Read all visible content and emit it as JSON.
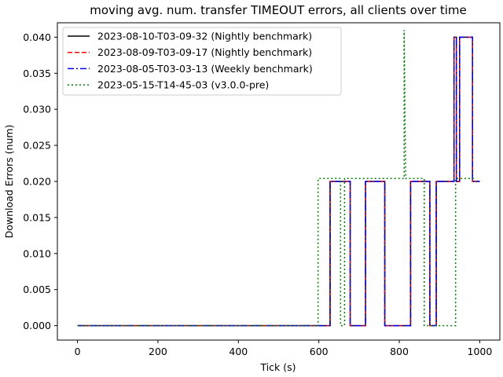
{
  "chart_data": {
    "type": "line",
    "title": "moving avg. num. transfer TIMEOUT errors, all clients over time",
    "xlabel": "Tick (s)",
    "ylabel": "Download Errors (num)",
    "xlim": [
      -50,
      1050
    ],
    "ylim": [
      -0.002,
      0.042
    ],
    "xticks": [
      0,
      200,
      400,
      600,
      800,
      1000
    ],
    "xtick_labels": [
      "0",
      "200",
      "400",
      "600",
      "800",
      "1000"
    ],
    "yticks": [
      0.0,
      0.005,
      0.01,
      0.015,
      0.02,
      0.025,
      0.03,
      0.035,
      0.04
    ],
    "ytick_labels": [
      "0.000",
      "0.005",
      "0.010",
      "0.015",
      "0.020",
      "0.025",
      "0.030",
      "0.035",
      "0.040"
    ],
    "grid": false,
    "legend_position": "top-left",
    "series": [
      {
        "name": "2023-08-10-T03-09-32 (Nightly benchmark)",
        "color": "#000000",
        "style": "solid",
        "x": [
          0,
          628,
          628,
          678,
          678,
          716,
          716,
          764,
          764,
          828,
          828,
          876,
          876,
          892,
          892,
          936,
          936,
          942,
          942,
          950,
          950,
          982,
          982,
          1000
        ],
        "y": [
          0,
          0,
          0.02,
          0.02,
          0,
          0,
          0.02,
          0.02,
          0,
          0,
          0.02,
          0.02,
          0,
          0,
          0.02,
          0.02,
          0.04,
          0.04,
          0.02,
          0.02,
          0.04,
          0.04,
          0.02,
          0.02
        ]
      },
      {
        "name": "2023-08-09-T03-09-17 (Nightly benchmark)",
        "color": "#ff0000",
        "style": "dashed",
        "x": [
          0,
          628,
          628,
          678,
          678,
          716,
          716,
          764,
          764,
          828,
          828,
          876,
          876,
          892,
          892,
          936,
          936,
          942,
          942,
          950,
          950,
          982,
          982,
          1000
        ],
        "y": [
          0,
          0,
          0.02,
          0.02,
          0,
          0,
          0.02,
          0.02,
          0,
          0,
          0.02,
          0.02,
          0,
          0,
          0.02,
          0.02,
          0.04,
          0.04,
          0.02,
          0.02,
          0.04,
          0.04,
          0.02,
          0.02
        ]
      },
      {
        "name": "2023-08-05-T03-03-13 (Weekly benchmark)",
        "color": "#0000ff",
        "style": "dashdot",
        "x": [
          0,
          628,
          628,
          678,
          678,
          716,
          716,
          764,
          764,
          828,
          828,
          876,
          876,
          892,
          892,
          936,
          936,
          942,
          942,
          950,
          950,
          982,
          982,
          1000
        ],
        "y": [
          0,
          0,
          0.02,
          0.02,
          0,
          0,
          0.02,
          0.02,
          0,
          0,
          0.02,
          0.02,
          0,
          0,
          0.02,
          0.02,
          0.04,
          0.04,
          0.02,
          0.02,
          0.04,
          0.04,
          0.02,
          0.02
        ]
      },
      {
        "name": "2023-05-15-T14-45-03 (v3.0.0-pre)",
        "color": "#008000",
        "style": "dotted",
        "x": [
          0,
          598,
          598,
          654,
          654,
          664,
          664,
          708,
          708,
          812,
          812,
          816,
          816,
          862,
          862,
          940,
          940,
          990
        ],
        "y": [
          0,
          0,
          0.0204,
          0.0204,
          0,
          0,
          0.0204,
          0.0204,
          0.0204,
          0.0204,
          0.041,
          0.0204,
          0.0204,
          0.0204,
          0,
          0,
          0.0204,
          0.0204
        ]
      }
    ]
  }
}
